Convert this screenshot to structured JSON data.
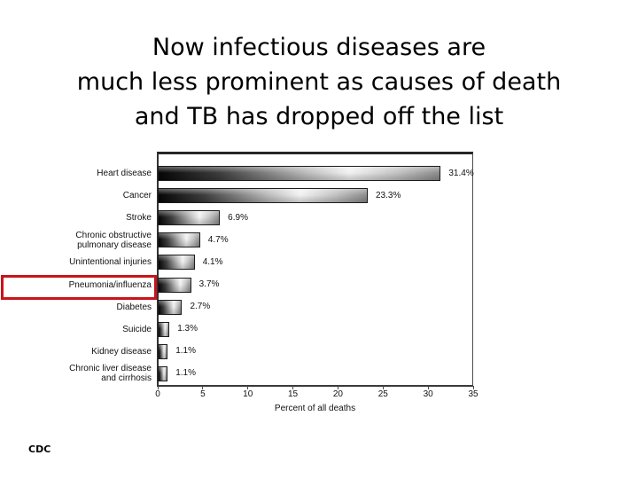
{
  "slide": {
    "title_lines": [
      "Now infectious diseases are",
      "much less prominent as causes of death",
      "and TB has dropped off the list"
    ],
    "footer": "CDC"
  },
  "colors": {
    "highlight_box": "#c8141a",
    "plot_border": "#3a3a3a",
    "bar_border": "#1c1c1c",
    "bar_gradient_dark": "#060606",
    "bar_gradient_light": "#f2f2f2",
    "bar_gradient_end": "#8d8d8d",
    "text": "#000000"
  },
  "chart_data": {
    "type": "bar",
    "orientation": "horizontal",
    "title": "",
    "xlabel": "Percent of all deaths",
    "ylabel": "",
    "xlim": [
      0,
      35
    ],
    "x_ticks": [
      0,
      5,
      10,
      15,
      20,
      25,
      30,
      35
    ],
    "grid": false,
    "legend": "none",
    "categories": [
      "Heart disease",
      "Cancer",
      "Stroke",
      "Chronic obstructive pulmonary disease",
      "Unintentional injuries",
      "Pneumonia/influenza",
      "Diabetes",
      "Suicide",
      "Kidney disease",
      "Chronic liver disease and cirrhosis"
    ],
    "display_labels": [
      "Heart disease",
      "Cancer",
      "Stroke",
      "Chronic obstructive\npulmonary disease",
      "Unintentional injuries",
      "Pneumonia/influenza",
      "Diabetes",
      "Suicide",
      "Kidney disease",
      "Chronic liver disease\nand cirrhosis"
    ],
    "values": [
      31.4,
      23.3,
      6.9,
      4.7,
      4.1,
      3.7,
      2.7,
      1.3,
      1.1,
      1.1
    ],
    "value_labels": [
      "31.4%",
      "23.3%",
      "6.9%",
      "4.7%",
      "4.1%",
      "3.7%",
      "2.7%",
      "1.3%",
      "1.1%",
      "1.1%"
    ],
    "highlighted_category": "Pneumonia/influenza",
    "highlight_index": 5
  }
}
